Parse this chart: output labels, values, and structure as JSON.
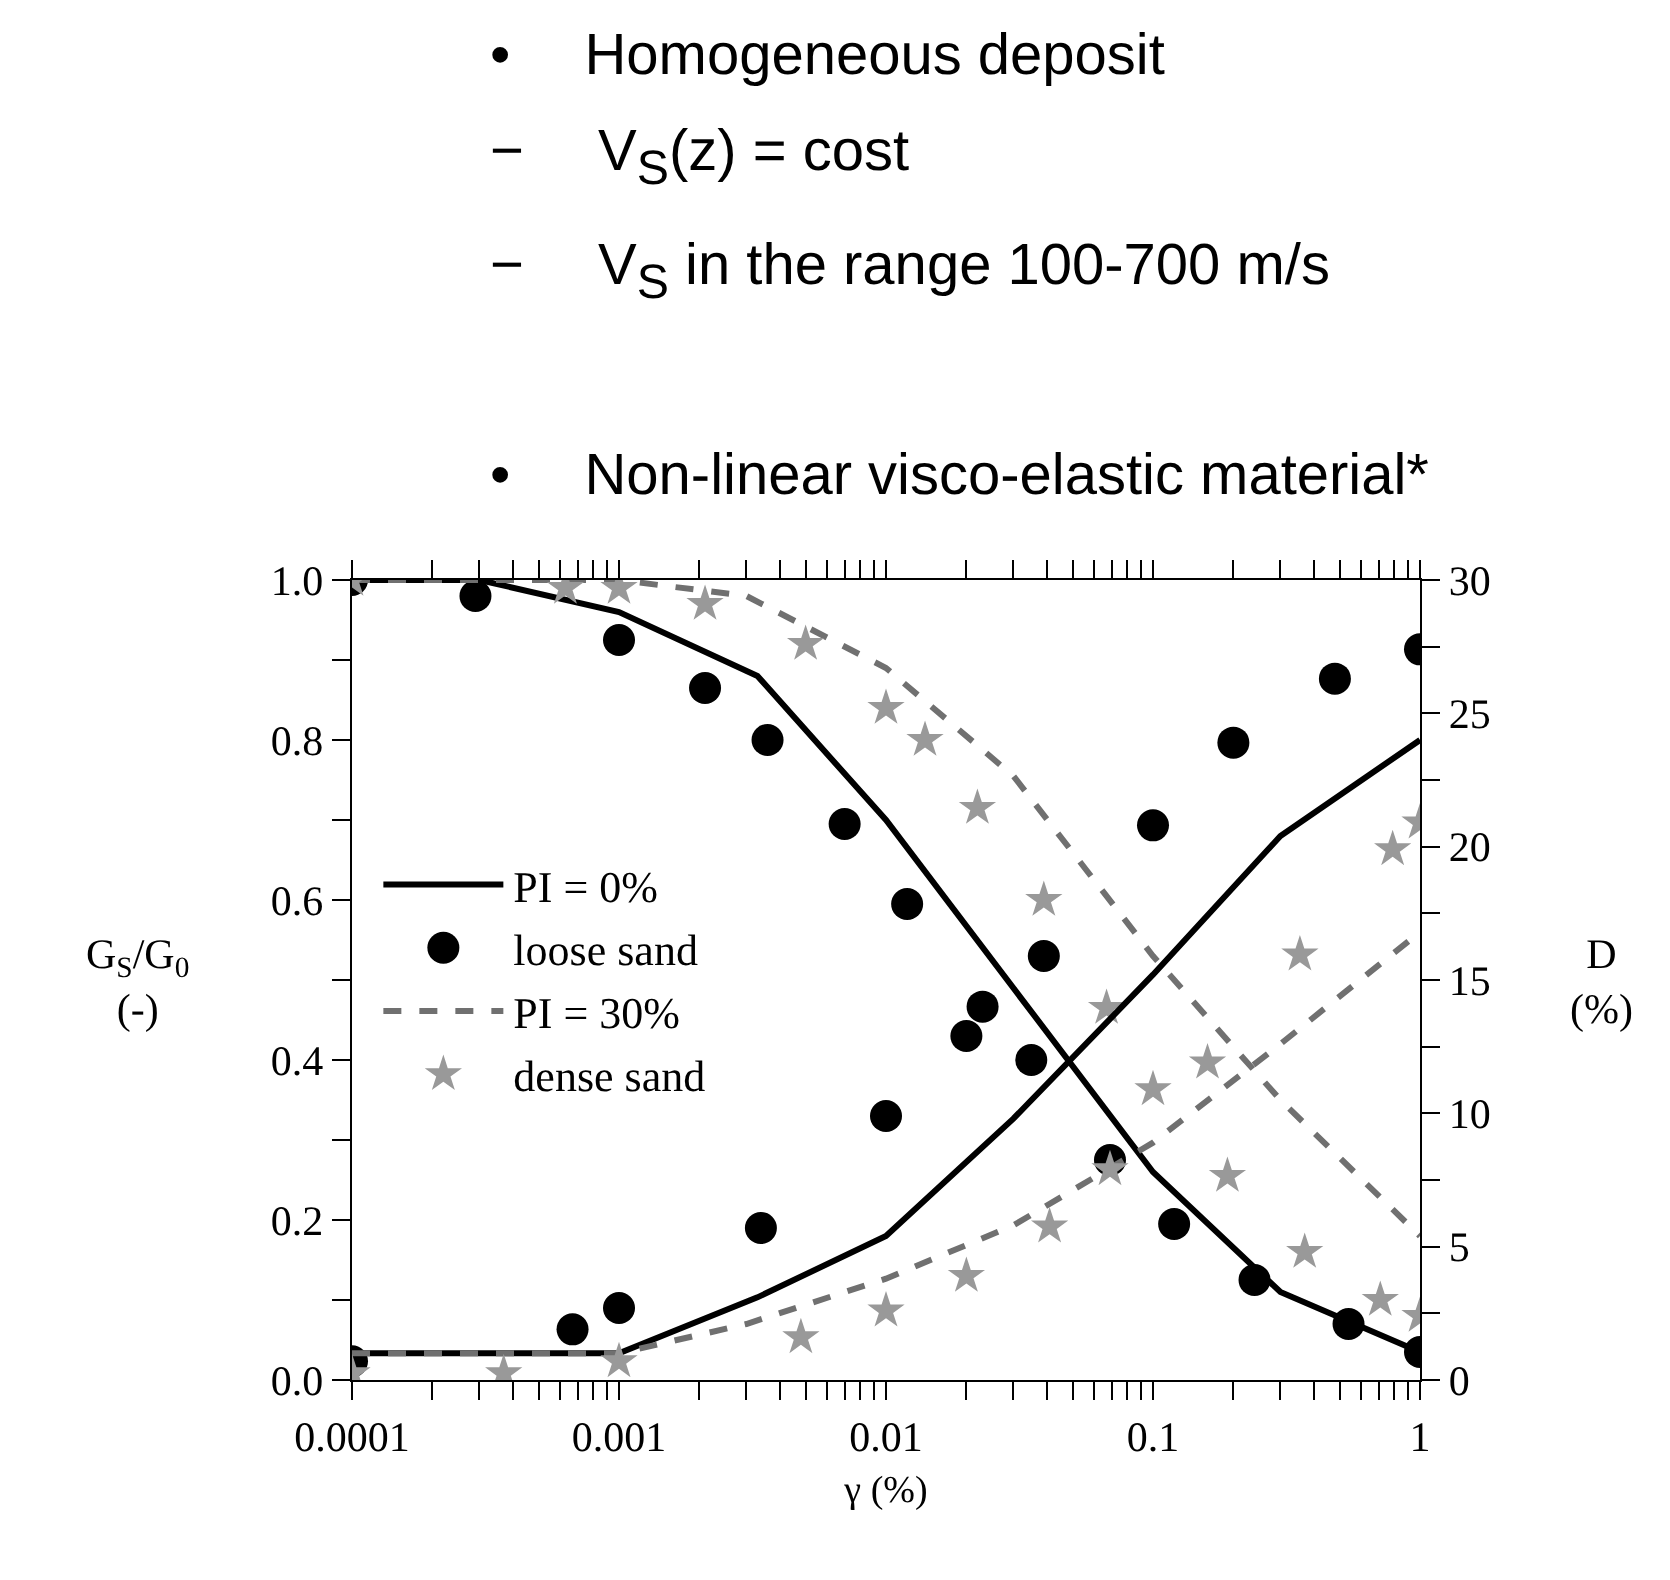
{
  "chart_data": {
    "type": "line",
    "annotations": [
      "• Homogeneous deposit",
      "− V$_{S}$(z) = cost",
      "− V$_{S}$ in the range 100-700 m/s",
      "• Non-linear visco-elastic material*"
    ],
    "xlabel": "γ (%)",
    "ylabel": "G$_{S}$/G$_{0}$\n(-)",
    "y2label": "D\n(%)",
    "log": "x",
    "grid": false,
    "legend": "left",
    "xlim": [
      0.0001,
      1
    ],
    "xticks": [
      0.0001,
      {
        "value": 0.0002,
        "label": null
      },
      {
        "value": 0.0003,
        "label": null
      },
      {
        "value": 0.0004,
        "label": null
      },
      {
        "value": 0.0005,
        "label": null
      },
      {
        "value": 0.0006,
        "label": null
      },
      {
        "value": 0.0007,
        "label": null
      },
      {
        "value": 0.0008,
        "label": null
      },
      {
        "value": 0.0009,
        "label": null
      },
      0.001,
      {
        "value": 0.002,
        "label": null
      },
      {
        "value": 0.003,
        "label": null
      },
      {
        "value": 0.004,
        "label": null
      },
      {
        "value": 0.005,
        "label": null
      },
      {
        "value": 0.006,
        "label": null
      },
      {
        "value": 0.007,
        "label": null
      },
      {
        "value": 0.008,
        "label": null
      },
      {
        "value": 0.009,
        "label": null
      },
      0.01,
      {
        "value": 0.02,
        "label": null
      },
      {
        "value": 0.03,
        "label": null
      },
      {
        "value": 0.04,
        "label": null
      },
      {
        "value": 0.05,
        "label": null
      },
      {
        "value": 0.06,
        "label": null
      },
      {
        "value": 0.07,
        "label": null
      },
      {
        "value": 0.08,
        "label": null
      },
      {
        "value": 0.09,
        "label": null
      },
      0.1,
      {
        "value": 0.2,
        "label": null
      },
      {
        "value": 0.3,
        "label": null
      },
      {
        "value": 0.4,
        "label": null
      },
      {
        "value": 0.5,
        "label": null
      },
      {
        "value": 0.6,
        "label": null
      },
      {
        "value": 0.7,
        "label": null
      },
      {
        "value": 0.8,
        "label": null
      },
      {
        "value": 0.9,
        "label": null
      },
      1
    ],
    "ylim": [
      0,
      1
    ],
    "yticks": [
      {
        "value": 0,
        "label": "0.0"
      },
      {
        "value": 0.1,
        "label": null
      },
      {
        "value": 0.2,
        "label": "0.2"
      },
      {
        "value": 0.3,
        "label": null
      },
      {
        "value": 0.4,
        "label": "0.4"
      },
      {
        "value": 0.5,
        "label": null
      },
      {
        "value": 0.6,
        "label": "0.6"
      },
      {
        "value": 0.7,
        "label": null
      },
      {
        "value": 0.8,
        "label": "0.8"
      },
      {
        "value": 0.9,
        "label": null
      },
      {
        "value": 1,
        "label": "1.0"
      }
    ],
    "y2lim": [
      0,
      30
    ],
    "y2ticks": [
      0,
      {
        "value": 2.5,
        "label": null
      },
      5,
      {
        "value": 7.5,
        "label": null
      },
      10,
      {
        "value": 12.5,
        "label": null
      },
      15,
      {
        "value": 17.5,
        "label": null
      },
      20,
      {
        "value": 22.5,
        "label": null
      },
      25,
      {
        "value": 27.5,
        "label": null
      },
      30
    ],
    "series": [
      {
        "name": "PI = 0%",
        "line_style": "solid",
        "color": "#000000",
        "x": [
          0.0001,
          0.0003,
          0.001,
          0.0033,
          0.01,
          0.03,
          0.1,
          0.3,
          1
        ],
        "values": [
          1.0,
          1.0,
          0.96,
          0.88,
          0.7,
          0.49,
          0.26,
          0.11,
          0.035
        ]
      },
      {
        "line_style": "solid",
        "color": "#000000",
        "axis": "y2",
        "x": [
          0.0001,
          0.0003,
          0.001,
          0.0033,
          0.01,
          0.03,
          0.1,
          0.3,
          1
        ],
        "values": [
          1.0,
          1.0,
          1.0,
          3.1,
          5.4,
          9.8,
          15.2,
          20.4,
          24.0
        ]
      },
      {
        "name": "loose sand",
        "type": "scatter",
        "marker": "circle",
        "color": "#000000",
        "x": [
          0.0001,
          0.00029,
          0.001,
          0.0021,
          0.0036,
          0.007,
          0.012,
          0.035,
          0.069,
          0.12,
          0.24,
          0.54,
          1
        ],
        "values": [
          1.0,
          0.98,
          0.925,
          0.865,
          0.8,
          0.695,
          0.595,
          0.4,
          0.275,
          0.195,
          0.125,
          0.07,
          0.035
        ]
      },
      {
        "type": "scatter",
        "marker": "circle",
        "color": "#000000",
        "axis": "y2",
        "x": [
          0.0001,
          0.00067,
          0.001,
          0.0034,
          0.01,
          0.02,
          0.023,
          0.039,
          0.1,
          0.2,
          0.48,
          1
        ],
        "values": [
          0.7,
          1.9,
          2.7,
          5.7,
          9.9,
          12.9,
          14.0,
          15.9,
          20.8,
          23.9,
          26.3,
          27.4
        ]
      },
      {
        "name": "PI = 30%",
        "line_style": "dashed",
        "color": "#707070",
        "x": [
          0.0001,
          0.001,
          0.003,
          0.01,
          0.03,
          0.1,
          0.3,
          1
        ],
        "values": [
          1.0,
          1.0,
          0.98,
          0.89,
          0.755,
          0.53,
          0.35,
          0.18
        ]
      },
      {
        "line_style": "dashed",
        "color": "#707070",
        "axis": "y2",
        "x": [
          0.0001,
          0.001,
          0.003,
          0.01,
          0.03,
          0.1,
          0.3,
          1
        ],
        "values": [
          1.0,
          1.0,
          2.1,
          3.8,
          5.8,
          8.9,
          12.6,
          16.8
        ]
      },
      {
        "name": "dense sand",
        "type": "scatter",
        "marker": "star",
        "color": "#999999",
        "x": [
          0.0001,
          0.00063,
          0.001,
          0.0021,
          0.005,
          0.01,
          0.014,
          0.022,
          0.039,
          0.067,
          0.19,
          0.37,
          0.71,
          1
        ],
        "values": [
          1.0,
          0.99,
          0.99,
          0.97,
          0.92,
          0.84,
          0.8,
          0.715,
          0.6,
          0.465,
          0.255,
          0.16,
          0.1,
          0.08
        ]
      },
      {
        "type": "scatter",
        "marker": "star",
        "color": "#999999",
        "axis": "y2",
        "x": [
          0.0001,
          0.00037,
          0.001,
          0.0048,
          0.01,
          0.02,
          0.041,
          0.069,
          0.1,
          0.16,
          0.355,
          0.79,
          1
        ],
        "values": [
          0.25,
          0.25,
          0.7,
          1.6,
          2.6,
          3.9,
          5.75,
          7.9,
          10.9,
          11.9,
          15.95,
          19.9,
          20.9
        ]
      }
    ]
  }
}
